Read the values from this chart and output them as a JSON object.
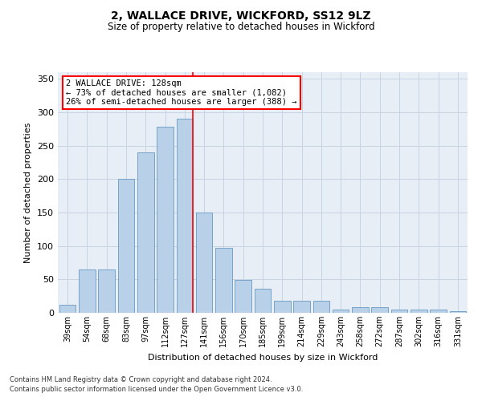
{
  "title1": "2, WALLACE DRIVE, WICKFORD, SS12 9LZ",
  "title2": "Size of property relative to detached houses in Wickford",
  "xlabel": "Distribution of detached houses by size in Wickford",
  "ylabel": "Number of detached properties",
  "categories": [
    "39sqm",
    "54sqm",
    "68sqm",
    "83sqm",
    "97sqm",
    "112sqm",
    "127sqm",
    "141sqm",
    "156sqm",
    "170sqm",
    "185sqm",
    "199sqm",
    "214sqm",
    "229sqm",
    "243sqm",
    "258sqm",
    "272sqm",
    "287sqm",
    "302sqm",
    "316sqm",
    "331sqm"
  ],
  "values": [
    12,
    65,
    65,
    200,
    240,
    278,
    290,
    150,
    97,
    49,
    36,
    18,
    18,
    18,
    5,
    8,
    8,
    5,
    5,
    5,
    3
  ],
  "bar_color": "#b8d0e8",
  "bar_edge_color": "#6899c4",
  "grid_color": "#c8d4e4",
  "background_color": "#e8eef6",
  "annotation_line1": "2 WALLACE DRIVE: 128sqm",
  "annotation_line2": "← 73% of detached houses are smaller (1,082)",
  "annotation_line3": "26% of semi-detached houses are larger (388) →",
  "annotation_box_color": "white",
  "annotation_box_edge_color": "red",
  "ref_line_color": "red",
  "ref_line_x": 6.43,
  "ylim": [
    0,
    360
  ],
  "yticks": [
    0,
    50,
    100,
    150,
    200,
    250,
    300,
    350
  ],
  "footer1": "Contains HM Land Registry data © Crown copyright and database right 2024.",
  "footer2": "Contains public sector information licensed under the Open Government Licence v3.0.",
  "title1_fontsize": 10,
  "title2_fontsize": 8.5,
  "xlabel_fontsize": 8,
  "ylabel_fontsize": 8,
  "tick_fontsize": 7,
  "ytick_fontsize": 8,
  "footer_fontsize": 6,
  "annot_fontsize": 7.5
}
